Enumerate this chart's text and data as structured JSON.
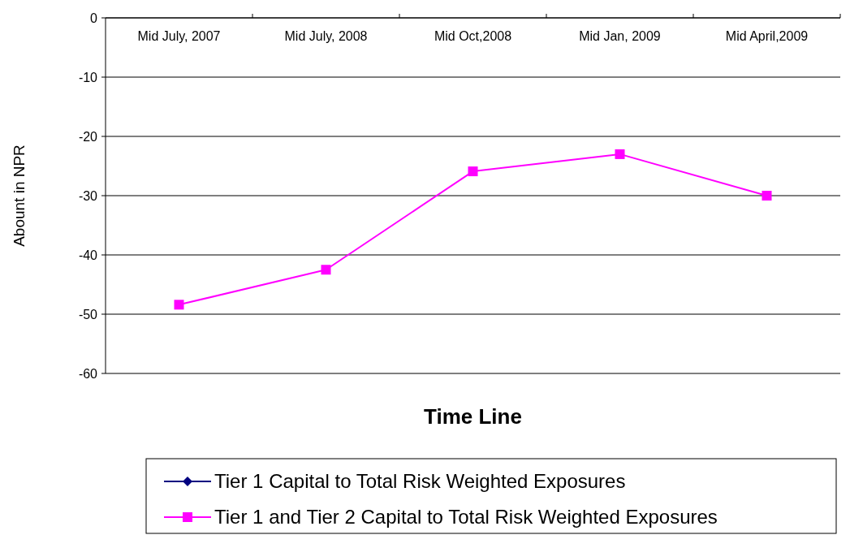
{
  "chart_data": {
    "type": "line",
    "xlabel": "Time Line",
    "ylabel": "Abount in NPR",
    "categories": [
      "Mid July, 2007",
      "Mid July, 2008",
      "Mid Oct,2008",
      "Mid Jan, 2009",
      "Mid April,2009"
    ],
    "series": [
      {
        "name": "Tier 1 Capital to Total Risk Weighted Exposures",
        "color": "#000080",
        "marker": "diamond",
        "values": [
          null,
          null,
          null,
          null,
          null
        ]
      },
      {
        "name": "Tier 1 and Tier 2 Capital to Total Risk Weighted Exposures",
        "color": "#ff00ff",
        "marker": "square",
        "values": [
          -48.4,
          -42.5,
          -25.9,
          -23.0,
          -30.0
        ]
      }
    ],
    "ylim": [
      -60,
      0
    ],
    "yticks": [
      -60,
      -50,
      -40,
      -30,
      -20,
      -10,
      0
    ],
    "grid": "y",
    "legend": "bottom"
  }
}
